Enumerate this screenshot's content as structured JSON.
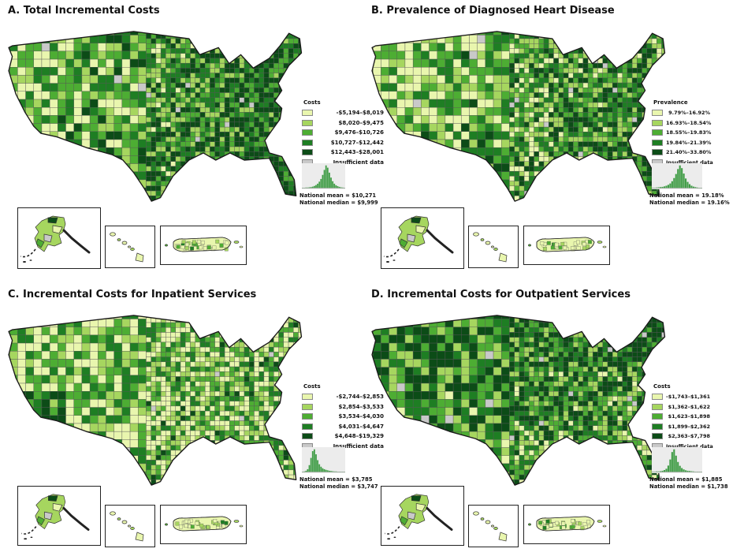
{
  "palette": {
    "classes": [
      "#e9f6ae",
      "#a6d65f",
      "#4dad33",
      "#1e7e23",
      "#0c4c17"
    ],
    "insufficient": "#c9c9c9",
    "histogram_bar": "#3f9c45",
    "histogram_bg": "#ececec",
    "map_border": "#1a1a1a",
    "cell_border": "#555555"
  },
  "panels": [
    {
      "id": "A",
      "title": "A. Total Incremental Costs",
      "legend_title": "Costs",
      "classes": [
        "-$5,194–$8,019",
        "$8,020–$9,475",
        "$9,476–$10,726",
        "$10,727–$12,442",
        "$12,443–$28,001"
      ],
      "insufficient_label": "Insufficient data",
      "national_mean": "National mean = $10,271",
      "national_median": "National median = $9,999",
      "histogram": [
        1,
        1,
        2,
        2,
        3,
        4,
        6,
        9,
        13,
        19,
        28,
        40,
        58,
        80,
        100,
        90,
        68,
        46,
        30,
        19,
        12,
        8,
        5,
        3,
        2,
        1
      ]
    },
    {
      "id": "B",
      "title": "B. Prevalence of Diagnosed Heart Disease",
      "legend_title": "Prevalence",
      "classes": [
        "9.79%–16.92%",
        "16.93%–18.54%",
        "18.55%–19.83%",
        "19.84%–21.39%",
        "21.40%–33.80%"
      ],
      "insufficient_label": "Insufficient data",
      "national_mean": "National mean = 19.18%",
      "national_median": "National median = 19.16%",
      "histogram": [
        1,
        1,
        2,
        3,
        4,
        5,
        7,
        10,
        14,
        20,
        30,
        44,
        62,
        84,
        100,
        88,
        64,
        42,
        27,
        17,
        10,
        6,
        4,
        2,
        1,
        1
      ]
    },
    {
      "id": "C",
      "title": "C. Incremental Costs for Inpatient Services",
      "legend_title": "Costs",
      "classes": [
        "-$2,744–$2,853",
        "$2,854–$3,533",
        "$3,534–$4,030",
        "$4,031–$4,647",
        "$4,648–$19,329"
      ],
      "insufficient_label": "Insufficient data",
      "national_mean": "National mean = $3,785",
      "national_median": "National median = $3,747",
      "histogram": [
        1,
        2,
        5,
        12,
        30,
        62,
        92,
        100,
        78,
        52,
        34,
        23,
        16,
        12,
        9,
        7,
        5,
        4,
        3,
        2,
        2,
        1,
        1,
        1,
        1,
        1
      ]
    },
    {
      "id": "D",
      "title": "D. Incremental Costs for Outpatient Services",
      "legend_title": "Costs",
      "classes": [
        "-$1,743–$1,361",
        "$1,362–$1,622",
        "$1,623–$1,898",
        "$1,899–$2,362",
        "$2,363–$7,798"
      ],
      "insufficient_label": "Insufficient data",
      "national_mean": "National mean = $1,885",
      "national_median": "National median = $1,738",
      "histogram": [
        1,
        1,
        2,
        2,
        3,
        5,
        8,
        14,
        28,
        55,
        88,
        100,
        72,
        44,
        27,
        17,
        11,
        7,
        5,
        4,
        3,
        2,
        1,
        1,
        1,
        1
      ]
    }
  ]
}
